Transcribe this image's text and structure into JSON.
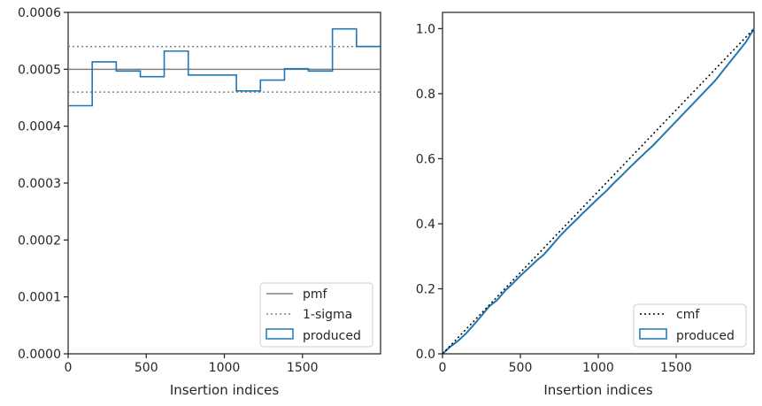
{
  "chart_data": [
    {
      "type": "step-histogram",
      "xlabel": "Insertion indices",
      "ylabel": "",
      "xlim": [
        0,
        2000
      ],
      "ylim": [
        0,
        0.0006
      ],
      "xticks": [
        0,
        500,
        1000,
        1500
      ],
      "xtick_labels": [
        "0",
        "500",
        "1000",
        "1500"
      ],
      "yticks": [
        0,
        0.0001,
        0.0002,
        0.0003,
        0.0004,
        0.0005,
        0.0006
      ],
      "ytick_labels": [
        "0.0000",
        "0.0001",
        "0.0002",
        "0.0003",
        "0.0004",
        "0.0005",
        "0.0006"
      ],
      "pmf": 0.0005,
      "sigma_lines": [
        0.00046,
        0.00054
      ],
      "bin_edges": [
        0,
        154,
        308,
        462,
        615,
        769,
        923,
        1077,
        1231,
        1385,
        1538,
        1692,
        1846,
        2000
      ],
      "produced_values": [
        0.000436,
        0.000513,
        0.000497,
        0.000487,
        0.000532,
        0.00049,
        0.00049,
        0.000462,
        0.000481,
        0.000501,
        0.000497,
        0.000571,
        0.00054
      ],
      "legend": [
        {
          "label": "pmf",
          "style": "solid",
          "color": "#808080"
        },
        {
          "label": "1-sigma",
          "style": "dotted",
          "color": "#808080"
        },
        {
          "label": "produced",
          "style": "box",
          "color": "#1f77b4"
        }
      ],
      "legend_position": "lower-right",
      "grid": false
    },
    {
      "type": "line",
      "xlabel": "Insertion indices",
      "ylabel": "",
      "xlim": [
        0,
        2000
      ],
      "ylim": [
        0,
        1.05
      ],
      "xticks": [
        0,
        500,
        1000,
        1500
      ],
      "xtick_labels": [
        "0",
        "500",
        "1000",
        "1500"
      ],
      "yticks": [
        0,
        0.2,
        0.4,
        0.6,
        0.8,
        1.0
      ],
      "ytick_labels": [
        "0.0",
        "0.2",
        "0.4",
        "0.6",
        "0.8",
        "1.0"
      ],
      "cmf": {
        "x": [
          0,
          2000
        ],
        "y": [
          0,
          1.0
        ]
      },
      "produced": {
        "x": [
          0,
          50,
          100,
          150,
          200,
          250,
          300,
          350,
          400,
          450,
          500,
          550,
          600,
          650,
          700,
          750,
          800,
          850,
          900,
          950,
          1000,
          1050,
          1100,
          1150,
          1200,
          1250,
          1300,
          1350,
          1400,
          1450,
          1500,
          1550,
          1600,
          1650,
          1700,
          1750,
          1800,
          1850,
          1900,
          1950,
          2000
        ],
        "y": [
          0,
          0.022,
          0.04,
          0.062,
          0.089,
          0.117,
          0.146,
          0.165,
          0.193,
          0.216,
          0.24,
          0.262,
          0.285,
          0.305,
          0.332,
          0.36,
          0.385,
          0.408,
          0.432,
          0.455,
          0.478,
          0.5,
          0.525,
          0.548,
          0.572,
          0.595,
          0.618,
          0.64,
          0.665,
          0.69,
          0.715,
          0.74,
          0.765,
          0.79,
          0.815,
          0.84,
          0.87,
          0.9,
          0.93,
          0.96,
          1.0
        ]
      },
      "legend": [
        {
          "label": "cmf",
          "style": "dotted",
          "color": "#000000"
        },
        {
          "label": "produced",
          "style": "box",
          "color": "#1f77b4"
        }
      ],
      "legend_position": "lower-right",
      "grid": false
    }
  ]
}
